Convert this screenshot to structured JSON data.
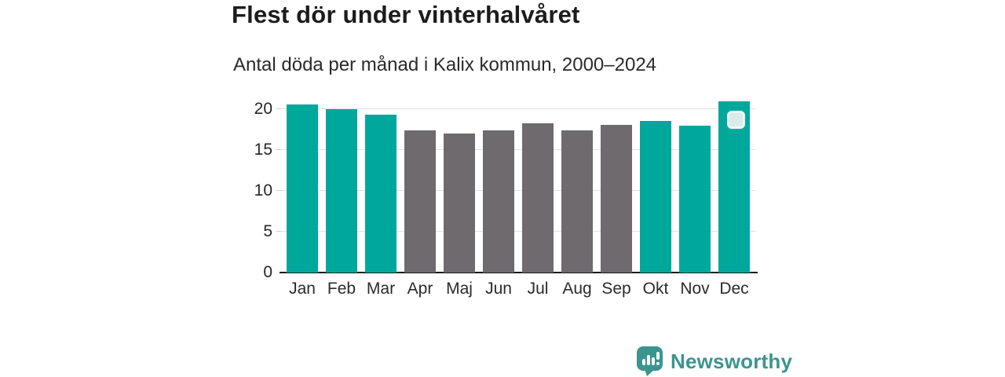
{
  "chart_data": {
    "type": "bar",
    "title": "Flest dör under vinterhalvåret",
    "subtitle": "Antal döda per månad i Kalix kommun, 2000–2024",
    "categories": [
      "Jan",
      "Feb",
      "Mar",
      "Apr",
      "Maj",
      "Jun",
      "Jul",
      "Aug",
      "Sep",
      "Okt",
      "Nov",
      "Dec"
    ],
    "values": [
      20.6,
      20.0,
      19.4,
      17.4,
      17.1,
      17.4,
      18.3,
      17.4,
      18.1,
      18.6,
      18.0,
      21.0
    ],
    "bar_colors": [
      "teal",
      "teal",
      "teal",
      "gray",
      "gray",
      "gray",
      "gray",
      "gray",
      "gray",
      "teal",
      "teal",
      "teal"
    ],
    "palette": {
      "teal": "#00a89c",
      "gray": "#6e6a6e"
    },
    "xlabel": "",
    "ylabel": "",
    "ylim": [
      0,
      21.4
    ],
    "yticks": [
      0,
      5,
      10,
      15,
      20
    ],
    "grid": true,
    "legend": false,
    "highlight_marker": {
      "category": "Dec"
    }
  },
  "branding": {
    "name": "Newsworthy",
    "color": "#3b958e"
  }
}
